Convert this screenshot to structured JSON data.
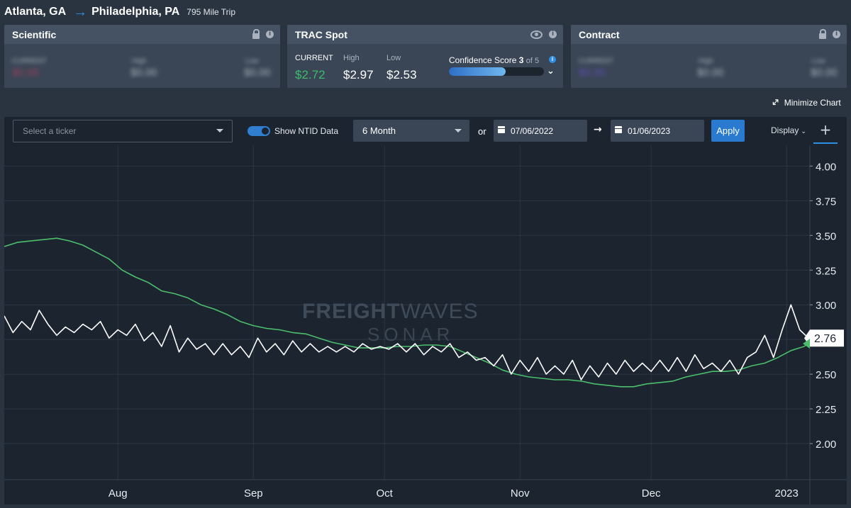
{
  "header": {
    "origin": "Atlanta, GA",
    "destination": "Philadelphia, PA",
    "trip": "795 Mile Trip",
    "arrow_icon": "arrow-right-icon"
  },
  "cards": {
    "scientific": {
      "title": "Scientific",
      "current_label": "CURRENT",
      "high_label": "High",
      "low_label": "Low",
      "current": "$0.00",
      "high": "$0.00",
      "low": "$0.00",
      "current_color": "#c0405e"
    },
    "trac": {
      "title": "TRAC Spot",
      "current_label": "CURRENT",
      "high_label": "High",
      "low_label": "Low",
      "current": "$2.72",
      "high": "$2.97",
      "low": "$2.53",
      "current_color": "#3dbb6b",
      "confidence_label": "Confidence Score",
      "confidence_score": "3",
      "confidence_of": "of 5",
      "confidence_fraction": 0.6
    },
    "contract": {
      "title": "Contract",
      "current_label": "CURRENT",
      "high_label": "High",
      "low_label": "Low",
      "current": "$0.00",
      "high": "$0.00",
      "low": "$0.00",
      "current_color": "#6a4fd0"
    }
  },
  "minimize_label": "Minimize Chart",
  "toolbar": {
    "ticker_placeholder": "Select a ticker",
    "ntid_label": "Show NTID Data",
    "ntid_on": true,
    "period": "6 Month",
    "or_label": "or",
    "start_date": "07/06/2022",
    "end_date": "01/06/2023",
    "apply_label": "Apply",
    "display_label": "Display"
  },
  "watermark": {
    "brand_bold": "FREIGHT",
    "brand_light": "WAVES",
    "product": "SONAR"
  },
  "colors": {
    "background": "#1c2430",
    "green_series": "#4bbf6b",
    "white_series": "#ffffff"
  },
  "chart_data": {
    "type": "line",
    "x_start": "2022-07-06",
    "x_end": "2023-01-06",
    "x_tick_labels": [
      "Aug",
      "Sep",
      "Oct",
      "Nov",
      "Dec",
      "2023"
    ],
    "x_tick_dates": [
      "2022-08-01",
      "2022-09-01",
      "2022-10-01",
      "2022-11-01",
      "2022-12-01",
      "2023-01-01"
    ],
    "ylim": [
      1.75,
      4.15
    ],
    "y_ticks": [
      "2.00",
      "2.25",
      "2.50",
      "2.75",
      "3.00",
      "3.25",
      "3.50",
      "3.75",
      "4.00"
    ],
    "grid": true,
    "current_label": "2.76",
    "series": [
      {
        "color": "#4bbf6b",
        "points": [
          [
            "2022-07-06",
            3.42
          ],
          [
            "2022-07-09",
            3.45
          ],
          [
            "2022-07-12",
            3.46
          ],
          [
            "2022-07-15",
            3.47
          ],
          [
            "2022-07-18",
            3.48
          ],
          [
            "2022-07-21",
            3.46
          ],
          [
            "2022-07-24",
            3.43
          ],
          [
            "2022-07-27",
            3.38
          ],
          [
            "2022-07-30",
            3.33
          ],
          [
            "2022-08-02",
            3.25
          ],
          [
            "2022-08-05",
            3.2
          ],
          [
            "2022-08-08",
            3.16
          ],
          [
            "2022-08-11",
            3.1
          ],
          [
            "2022-08-14",
            3.08
          ],
          [
            "2022-08-17",
            3.05
          ],
          [
            "2022-08-20",
            3.0
          ],
          [
            "2022-08-23",
            2.97
          ],
          [
            "2022-08-26",
            2.93
          ],
          [
            "2022-08-29",
            2.88
          ],
          [
            "2022-09-01",
            2.85
          ],
          [
            "2022-09-04",
            2.83
          ],
          [
            "2022-09-07",
            2.82
          ],
          [
            "2022-09-10",
            2.8
          ],
          [
            "2022-09-13",
            2.79
          ],
          [
            "2022-09-16",
            2.76
          ],
          [
            "2022-09-19",
            2.73
          ],
          [
            "2022-09-22",
            2.71
          ],
          [
            "2022-09-25",
            2.69
          ],
          [
            "2022-09-28",
            2.69
          ],
          [
            "2022-10-01",
            2.69
          ],
          [
            "2022-10-04",
            2.7
          ],
          [
            "2022-10-07",
            2.7
          ],
          [
            "2022-10-10",
            2.71
          ],
          [
            "2022-10-13",
            2.71
          ],
          [
            "2022-10-16",
            2.7
          ],
          [
            "2022-10-19",
            2.66
          ],
          [
            "2022-10-22",
            2.62
          ],
          [
            "2022-10-25",
            2.58
          ],
          [
            "2022-10-28",
            2.53
          ],
          [
            "2022-10-31",
            2.5
          ],
          [
            "2022-11-03",
            2.48
          ],
          [
            "2022-11-06",
            2.47
          ],
          [
            "2022-11-09",
            2.46
          ],
          [
            "2022-11-12",
            2.46
          ],
          [
            "2022-11-15",
            2.45
          ],
          [
            "2022-11-18",
            2.43
          ],
          [
            "2022-11-21",
            2.42
          ],
          [
            "2022-11-24",
            2.41
          ],
          [
            "2022-11-27",
            2.41
          ],
          [
            "2022-11-30",
            2.43
          ],
          [
            "2022-12-03",
            2.44
          ],
          [
            "2022-12-06",
            2.45
          ],
          [
            "2022-12-09",
            2.48
          ],
          [
            "2022-12-12",
            2.5
          ],
          [
            "2022-12-15",
            2.52
          ],
          [
            "2022-12-18",
            2.52
          ],
          [
            "2022-12-21",
            2.53
          ],
          [
            "2022-12-24",
            2.56
          ],
          [
            "2022-12-27",
            2.58
          ],
          [
            "2022-12-30",
            2.62
          ],
          [
            "2023-01-02",
            2.67
          ],
          [
            "2023-01-05",
            2.7
          ],
          [
            "2023-01-06",
            2.72
          ]
        ]
      },
      {
        "color": "#ffffff",
        "points": [
          [
            "2022-07-06",
            2.92
          ],
          [
            "2022-07-08",
            2.8
          ],
          [
            "2022-07-10",
            2.88
          ],
          [
            "2022-07-12",
            2.82
          ],
          [
            "2022-07-14",
            2.96
          ],
          [
            "2022-07-16",
            2.86
          ],
          [
            "2022-07-18",
            2.78
          ],
          [
            "2022-07-20",
            2.84
          ],
          [
            "2022-07-22",
            2.8
          ],
          [
            "2022-07-24",
            2.86
          ],
          [
            "2022-07-26",
            2.82
          ],
          [
            "2022-07-28",
            2.88
          ],
          [
            "2022-07-30",
            2.76
          ],
          [
            "2022-08-01",
            2.82
          ],
          [
            "2022-08-03",
            2.78
          ],
          [
            "2022-08-05",
            2.86
          ],
          [
            "2022-08-07",
            2.74
          ],
          [
            "2022-08-09",
            2.8
          ],
          [
            "2022-08-11",
            2.7
          ],
          [
            "2022-08-13",
            2.85
          ],
          [
            "2022-08-15",
            2.66
          ],
          [
            "2022-08-17",
            2.76
          ],
          [
            "2022-08-19",
            2.68
          ],
          [
            "2022-08-21",
            2.72
          ],
          [
            "2022-08-23",
            2.64
          ],
          [
            "2022-08-25",
            2.72
          ],
          [
            "2022-08-27",
            2.64
          ],
          [
            "2022-08-29",
            2.7
          ],
          [
            "2022-08-31",
            2.62
          ],
          [
            "2022-09-02",
            2.76
          ],
          [
            "2022-09-04",
            2.66
          ],
          [
            "2022-09-06",
            2.72
          ],
          [
            "2022-09-08",
            2.64
          ],
          [
            "2022-09-10",
            2.74
          ],
          [
            "2022-09-12",
            2.66
          ],
          [
            "2022-09-14",
            2.72
          ],
          [
            "2022-09-16",
            2.66
          ],
          [
            "2022-09-18",
            2.7
          ],
          [
            "2022-09-20",
            2.66
          ],
          [
            "2022-09-22",
            2.7
          ],
          [
            "2022-09-24",
            2.66
          ],
          [
            "2022-09-26",
            2.72
          ],
          [
            "2022-09-28",
            2.68
          ],
          [
            "2022-09-30",
            2.7
          ],
          [
            "2022-10-02",
            2.68
          ],
          [
            "2022-10-04",
            2.72
          ],
          [
            "2022-10-06",
            2.66
          ],
          [
            "2022-10-08",
            2.72
          ],
          [
            "2022-10-10",
            2.64
          ],
          [
            "2022-10-12",
            2.7
          ],
          [
            "2022-10-14",
            2.66
          ],
          [
            "2022-10-16",
            2.72
          ],
          [
            "2022-10-18",
            2.62
          ],
          [
            "2022-10-20",
            2.66
          ],
          [
            "2022-10-22",
            2.6
          ],
          [
            "2022-10-24",
            2.62
          ],
          [
            "2022-10-26",
            2.56
          ],
          [
            "2022-10-28",
            2.64
          ],
          [
            "2022-10-30",
            2.5
          ],
          [
            "2022-11-01",
            2.6
          ],
          [
            "2022-11-03",
            2.52
          ],
          [
            "2022-11-05",
            2.62
          ],
          [
            "2022-11-07",
            2.5
          ],
          [
            "2022-11-09",
            2.56
          ],
          [
            "2022-11-11",
            2.5
          ],
          [
            "2022-11-13",
            2.6
          ],
          [
            "2022-11-15",
            2.46
          ],
          [
            "2022-11-17",
            2.56
          ],
          [
            "2022-11-19",
            2.48
          ],
          [
            "2022-11-21",
            2.58
          ],
          [
            "2022-11-23",
            2.5
          ],
          [
            "2022-11-25",
            2.6
          ],
          [
            "2022-11-27",
            2.52
          ],
          [
            "2022-11-29",
            2.58
          ],
          [
            "2022-12-01",
            2.52
          ],
          [
            "2022-12-03",
            2.6
          ],
          [
            "2022-12-05",
            2.52
          ],
          [
            "2022-12-07",
            2.62
          ],
          [
            "2022-12-09",
            2.52
          ],
          [
            "2022-12-11",
            2.64
          ],
          [
            "2022-12-13",
            2.54
          ],
          [
            "2022-12-15",
            2.58
          ],
          [
            "2022-12-17",
            2.52
          ],
          [
            "2022-12-19",
            2.6
          ],
          [
            "2022-12-21",
            2.5
          ],
          [
            "2022-12-23",
            2.62
          ],
          [
            "2022-12-25",
            2.66
          ],
          [
            "2022-12-27",
            2.78
          ],
          [
            "2022-12-29",
            2.62
          ],
          [
            "2022-12-31",
            2.82
          ],
          [
            "2023-01-02",
            3.0
          ],
          [
            "2023-01-04",
            2.82
          ],
          [
            "2023-01-06",
            2.76
          ]
        ]
      }
    ]
  }
}
